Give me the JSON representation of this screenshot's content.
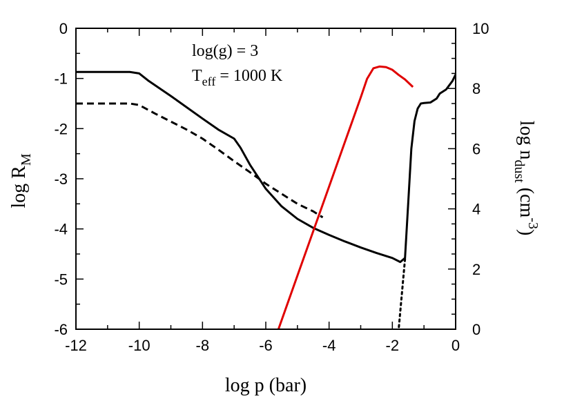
{
  "chart_data": {
    "type": "line",
    "title": "",
    "xlabel": {
      "main": "log p (bar)"
    },
    "ylabel_left": {
      "base": "log R",
      "sub": "M"
    },
    "ylabel_right": {
      "prefix": "log n",
      "sub": "dust",
      "mid": " (cm",
      "sup": "-3",
      "suffix": ")"
    },
    "annotations": {
      "line1": "log(g) = 3",
      "line2_base": "T",
      "line2_sub": "eff",
      "line2_rest": " = 1000 K"
    },
    "xlim": [
      -12,
      0
    ],
    "ylim_left": [
      -6,
      0
    ],
    "ylim_right": [
      0,
      10
    ],
    "x_ticks": [
      -12,
      -10,
      -8,
      -6,
      -4,
      -2,
      0
    ],
    "y_left_ticks": [
      0,
      -1,
      -2,
      -3,
      -4,
      -5,
      -6
    ],
    "y_right_ticks": [
      10,
      8,
      6,
      4,
      2,
      0
    ],
    "series": [
      {
        "name": "log R_M (solid)",
        "axis": "left",
        "color": "#000000",
        "dash": "solid",
        "x": [
          -12,
          -10.3,
          -10,
          -9.7,
          -9,
          -8,
          -7.5,
          -7,
          -6.8,
          -6.5,
          -6,
          -5.5,
          -5,
          -4.5,
          -4,
          -3.5,
          -3,
          -2.5,
          -2,
          -1.75,
          -1.6,
          -1.5,
          -1.4,
          -1.3,
          -1.2,
          -1.1,
          -1.0,
          -0.8,
          -0.6,
          -0.5,
          -0.3,
          -0.1,
          0
        ],
        "y": [
          -0.87,
          -0.87,
          -0.9,
          -1.05,
          -1.35,
          -1.8,
          -2.02,
          -2.2,
          -2.38,
          -2.72,
          -3.2,
          -3.55,
          -3.8,
          -3.98,
          -4.12,
          -4.25,
          -4.37,
          -4.48,
          -4.58,
          -4.66,
          -4.58,
          -3.5,
          -2.4,
          -1.85,
          -1.6,
          -1.5,
          -1.49,
          -1.48,
          -1.4,
          -1.3,
          -1.22,
          -1.05,
          -0.92
        ]
      },
      {
        "name": "log R_M (dashed)",
        "axis": "left",
        "color": "#000000",
        "dash": "dashed",
        "x": [
          -12,
          -10.3,
          -10,
          -9.5,
          -9,
          -8.5,
          -8,
          -7.5,
          -7,
          -6.5,
          -6,
          -5.5,
          -5,
          -4.5,
          -4.2
        ],
        "y": [
          -1.5,
          -1.5,
          -1.53,
          -1.7,
          -1.86,
          -2.02,
          -2.2,
          -2.42,
          -2.65,
          -2.87,
          -3.1,
          -3.3,
          -3.5,
          -3.65,
          -3.77
        ]
      },
      {
        "name": "log R_M (dotted)",
        "axis": "left",
        "color": "#000000",
        "dash": "dotted",
        "x": [
          -1.6,
          -1.7,
          -1.8
        ],
        "y": [
          -4.6,
          -5.3,
          -6.0
        ]
      },
      {
        "name": "log n_dust",
        "axis": "right",
        "color": "#e00000",
        "dash": "solid",
        "x": [
          -5.6,
          -5.0,
          -4.5,
          -4.0,
          -3.5,
          -3.0,
          -2.8,
          -2.6,
          -2.4,
          -2.2,
          -2.0,
          -1.8,
          -1.6,
          -1.35
        ],
        "y": [
          0.0,
          1.78,
          3.26,
          4.74,
          6.22,
          7.7,
          8.32,
          8.67,
          8.73,
          8.71,
          8.62,
          8.45,
          8.3,
          8.05
        ]
      }
    ]
  }
}
